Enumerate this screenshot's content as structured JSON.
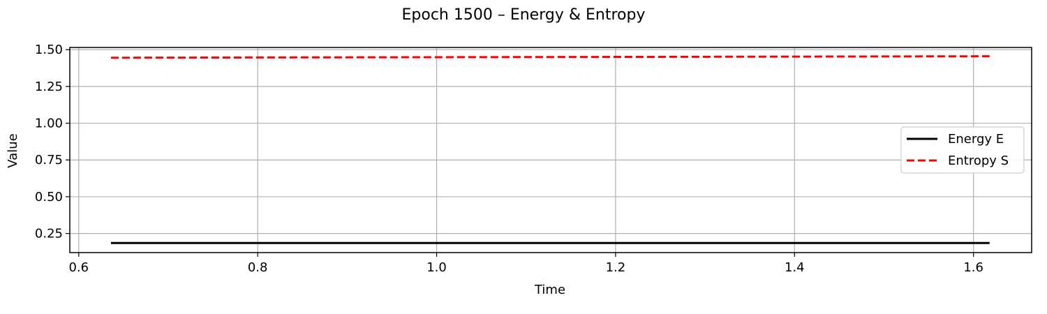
{
  "chart_data": {
    "type": "line",
    "title": "Epoch 1500 – Energy & Entropy",
    "xlabel": "Time",
    "ylabel": "Value",
    "xlim": [
      0.59,
      1.665
    ],
    "ylim": [
      0.12,
      1.515
    ],
    "xticks": [
      0.6,
      0.8,
      1.0,
      1.2,
      1.4,
      1.6
    ],
    "xtick_labels": [
      "0.6",
      "0.8",
      "1.0",
      "1.2",
      "1.4",
      "1.6"
    ],
    "yticks": [
      0.25,
      0.5,
      0.75,
      1.0,
      1.25,
      1.5
    ],
    "ytick_labels": [
      "0.25",
      "0.50",
      "0.75",
      "1.00",
      "1.25",
      "1.50"
    ],
    "grid": true,
    "legend_position": "center-right",
    "series": [
      {
        "name": "Energy E",
        "color": "#000000",
        "line_style": "solid",
        "x": [
          0.636,
          1.618
        ],
        "y": [
          0.185,
          0.185
        ]
      },
      {
        "name": "Entropy S",
        "color": "#ff0000",
        "line_style": "dashed",
        "x": [
          0.636,
          1.618
        ],
        "y": [
          1.445,
          1.455
        ]
      }
    ]
  }
}
